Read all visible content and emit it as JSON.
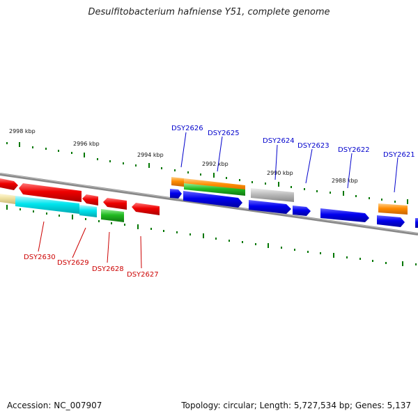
{
  "title": "Desulfitobacterium hafniense Y51, complete genome",
  "footer": {
    "accession": "Accession: NC_007907",
    "summary": "Topology: circular; Length: 5,727,534 bp; Genes: 5,137"
  },
  "scale_labels": [
    "2998 kbp",
    "2996 kbp",
    "2994 kbp",
    "2992 kbp",
    "2990 kbp",
    "2988 kbp"
  ],
  "genes_top_strand": [
    "DSY2626",
    "DSY2625",
    "DSY2624",
    "DSY2623",
    "DSY2622",
    "DSY2621"
  ],
  "genes_bottom_strand": [
    "DSY2630",
    "DSY2629",
    "DSY2628",
    "DSY2627"
  ],
  "colors": {
    "top_label": "#0000cc",
    "bottom_label": "#cc0000",
    "red": "#ee0000",
    "cyan": "#00e5ee",
    "green": "#22bb22",
    "orange": "#ff8c00",
    "blue": "#0000ee",
    "grey": "#bbbbbb",
    "khaki": "#eee0a0",
    "tick": "#007700",
    "backbone": "#888888"
  }
}
